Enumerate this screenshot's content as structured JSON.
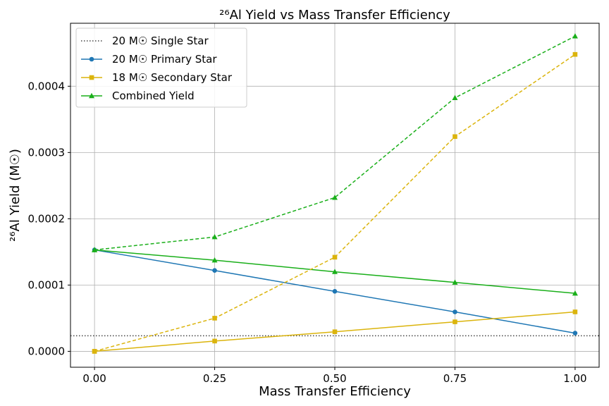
{
  "chart_data": {
    "type": "line",
    "title": "²⁶Al Yield vs Mass Transfer Efficiency",
    "xlabel": "Mass Transfer Efficiency",
    "ylabel": "²⁶Al Yield (M☉)",
    "xlim": [
      -0.05,
      1.05
    ],
    "ylim": [
      -2.4e-05,
      0.000495
    ],
    "xticks": [
      0.0,
      0.25,
      0.5,
      0.75,
      1.0
    ],
    "xtick_labels": [
      "0.00",
      "0.25",
      "0.50",
      "0.75",
      "1.00"
    ],
    "yticks": [
      0.0,
      0.0001,
      0.0002,
      0.0003,
      0.0004
    ],
    "ytick_labels": [
      "0.0000",
      "0.0001",
      "0.0002",
      "0.0003",
      "0.0004"
    ],
    "grid": true,
    "legend_position": "top-left",
    "x": [
      0.0,
      0.25,
      0.5,
      0.75,
      1.0
    ],
    "legend": [
      {
        "name": "20 M☉ Single Star",
        "color": "#444444",
        "style": "dotted",
        "marker": "none"
      },
      {
        "name": "20 M☉ Primary Star",
        "color": "#1f77b4",
        "style": "solid",
        "marker": "circle"
      },
      {
        "name": "18 M☉ Secondary Star",
        "color": "#dbb40c",
        "style": "solid",
        "marker": "square"
      },
      {
        "name": "Combined Yield",
        "color": "#1aaf1a",
        "style": "solid",
        "marker": "triangle"
      }
    ],
    "reference_lines": [
      {
        "series": "20 M☉ Single Star",
        "y": 2.35e-05,
        "color": "#444444",
        "style": "dotted"
      }
    ],
    "series": [
      {
        "series": "20 M☉ Primary Star",
        "color": "#1f77b4",
        "style": "solid",
        "marker": "circle",
        "values": [
          0.000153,
          0.000122,
          9.05e-05,
          5.95e-05,
          2.75e-05
        ]
      },
      {
        "series": "18 M☉ Secondary Star",
        "color": "#dbb40c",
        "style": "solid",
        "marker": "square",
        "values": [
          0.0,
          1.55e-05,
          2.95e-05,
          4.45e-05,
          5.95e-05
        ]
      },
      {
        "series": "Combined Yield",
        "color": "#1aaf1a",
        "style": "solid",
        "marker": "triangle",
        "values": [
          0.000153,
          0.0001375,
          0.00012,
          0.000104,
          8.75e-05
        ]
      },
      {
        "series": "18 M☉ Secondary Star",
        "color": "#dbb40c",
        "style": "dashed",
        "marker": "square",
        "values": [
          0.0,
          5e-05,
          0.000142,
          0.000324,
          0.000448
        ]
      },
      {
        "series": "Combined Yield",
        "color": "#1aaf1a",
        "style": "dashed",
        "marker": "triangle",
        "values": [
          0.000153,
          0.0001725,
          0.000232,
          0.0003825,
          0.0004755
        ]
      }
    ]
  }
}
